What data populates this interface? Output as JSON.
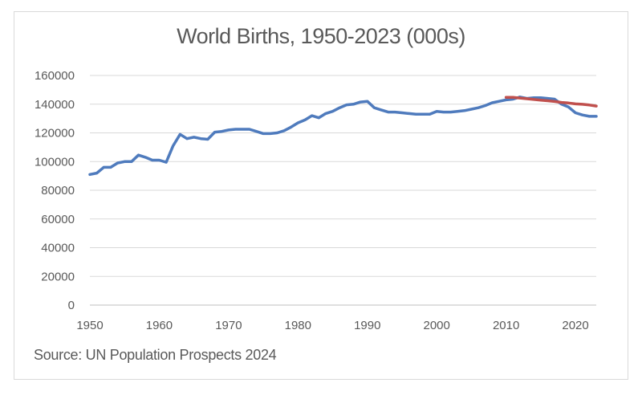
{
  "chart_data": {
    "type": "line",
    "title": "World Births, 1950-2023 (000s)",
    "source": "Source: UN Population Prospects 2024",
    "xlim": [
      1950,
      2023
    ],
    "ylim": [
      0,
      160000
    ],
    "x_ticks": [
      "1950",
      "1960",
      "1970",
      "1980",
      "1990",
      "2000",
      "2010",
      "2020"
    ],
    "y_ticks": [
      "0",
      "20000",
      "40000",
      "60000",
      "80000",
      "100000",
      "120000",
      "140000",
      "160000"
    ],
    "grid": true,
    "legend": "none",
    "series": [
      {
        "color": "#4f7bbd",
        "x": [
          1950,
          1951,
          1952,
          1953,
          1954,
          1955,
          1956,
          1957,
          1958,
          1959,
          1960,
          1961,
          1962,
          1963,
          1964,
          1965,
          1966,
          1967,
          1968,
          1969,
          1970,
          1971,
          1972,
          1973,
          1974,
          1975,
          1976,
          1977,
          1978,
          1979,
          1980,
          1981,
          1982,
          1983,
          1984,
          1985,
          1986,
          1987,
          1988,
          1989,
          1990,
          1991,
          1992,
          1993,
          1994,
          1995,
          1996,
          1997,
          1998,
          1999,
          2000,
          2001,
          2002,
          2003,
          2004,
          2005,
          2006,
          2007,
          2008,
          2009,
          2010,
          2011,
          2012,
          2013,
          2014,
          2015,
          2016,
          2017,
          2018,
          2019,
          2020,
          2021,
          2022,
          2023
        ],
        "y": [
          91000,
          92000,
          96000,
          96000,
          99000,
          100000,
          100000,
          104500,
          103000,
          101000,
          101000,
          99500,
          111000,
          119000,
          116000,
          117000,
          116000,
          115500,
          120500,
          121000,
          122000,
          122500,
          122500,
          122500,
          121000,
          119500,
          119500,
          120000,
          121500,
          124000,
          127000,
          129000,
          132000,
          130500,
          133500,
          135000,
          137500,
          139500,
          140000,
          141500,
          142000,
          137500,
          136000,
          134500,
          134500,
          134000,
          133500,
          133000,
          133000,
          133000,
          135000,
          134500,
          134500,
          135000,
          135500,
          136500,
          137500,
          139000,
          141000,
          142000,
          143000,
          143500,
          145000,
          144000,
          144500,
          144500,
          144000,
          143500,
          140000,
          138000,
          134000,
          132500,
          131500,
          131500
        ]
      },
      {
        "color": "#c0504d",
        "x": [
          2010,
          2011,
          2012,
          2013,
          2014,
          2015,
          2016,
          2017,
          2018,
          2019,
          2020,
          2021,
          2022,
          2023
        ],
        "y": [
          144800,
          144700,
          144300,
          143800,
          143300,
          142800,
          142400,
          141900,
          141200,
          140800,
          140200,
          139900,
          139400,
          138700
        ]
      }
    ]
  }
}
